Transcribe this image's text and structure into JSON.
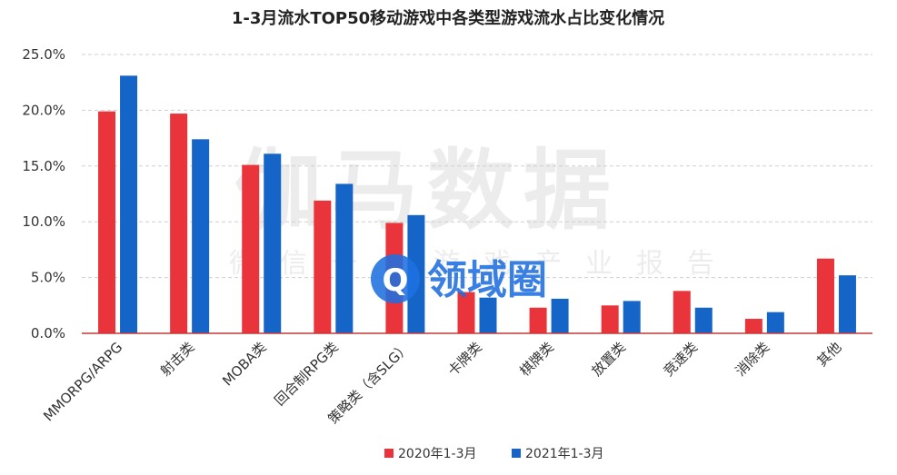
{
  "chart_data": {
    "type": "bar",
    "title": "1-3月流水TOP50移动游戏中各类型游戏流水占比变化情况",
    "categories": [
      "MMORPG/ARPG",
      "射击类",
      "MOBA类",
      "回合制RPG类",
      "策略类（含SLG）",
      "卡牌类",
      "棋牌类",
      "放置类",
      "竞速类",
      "消除类",
      "其他"
    ],
    "series": [
      {
        "name": "2020年1-3月",
        "color": "#e8343a",
        "values": [
          19.9,
          19.7,
          15.1,
          11.9,
          9.9,
          3.7,
          2.3,
          2.5,
          3.8,
          1.3,
          6.7
        ]
      },
      {
        "name": "2021年1-3月",
        "color": "#1565c8",
        "values": [
          23.1,
          17.4,
          16.1,
          13.4,
          10.6,
          3.2,
          3.1,
          2.9,
          2.3,
          1.9,
          5.2
        ]
      }
    ],
    "yticks": [
      "0.0%",
      "5.0%",
      "10.0%",
      "15.0%",
      "20.0%",
      "25.0%"
    ],
    "ylim": [
      0,
      25
    ],
    "grid": true,
    "legend_position": "bottom"
  },
  "watermark": {
    "brand": "伽马数据",
    "subtitle": "微信号：游戏产业报告",
    "logo_text": "领域圈",
    "logo_mark": "Q",
    "logo_color": "#1f6fe0"
  }
}
